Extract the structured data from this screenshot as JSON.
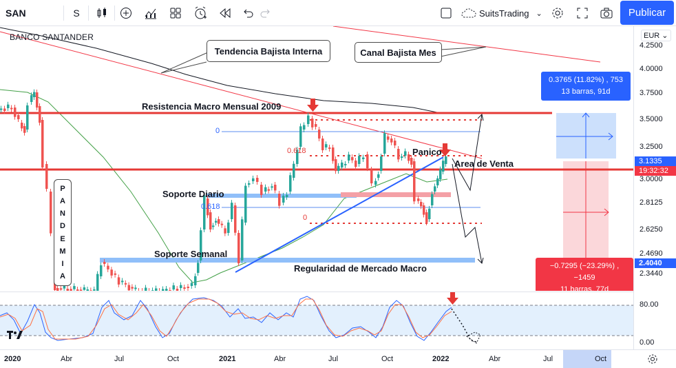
{
  "toolbar": {
    "symbol": "SAN",
    "interval": "S",
    "layout_name": "SuitsTrading",
    "publish_label": "Publicar",
    "icons": [
      "candles-icon",
      "add-indicator-icon",
      "indicators-icon",
      "templates-icon",
      "alert-icon",
      "replay-icon",
      "undo-icon",
      "redo-icon",
      "fullscreen-checkbox-icon",
      "cloud-icon",
      "chevron-down-icon",
      "gear-icon",
      "fullscreen-icon",
      "camera-icon"
    ]
  },
  "chart": {
    "symbol_name": "BANCO SANTANDER",
    "annotations": {
      "tendencia": "Tendencia Bajista Interna",
      "canal": "Canal Bajista Mes",
      "resistencia": "Resistencia Macro Mensual 2009",
      "panico": "Panico",
      "area_venta": "Area de Venta",
      "soporte_diario": "Soporte Diario",
      "soporte_semanal": "Soporte Semanal",
      "regularidad": "Regularidad de Mercado Macro",
      "pandemia": [
        "P",
        "A",
        "N",
        "D",
        "E",
        "M",
        "I",
        "A"
      ]
    },
    "fib_labels": {
      "zero_top": "0",
      "fib618_top": "0.618",
      "fib618_bottom": "0.618",
      "zero_bottom": "0"
    },
    "measure_up": {
      "line1": "0.3765 (11.82%) , 753",
      "line2": "13 barras, 91d"
    },
    "measure_down": {
      "line1": "−0.7295 (−23.29%) , −1459",
      "line2": "11 barras, 77d"
    }
  },
  "price_axis": {
    "currency": "EUR",
    "labels": [
      "4.2500",
      "4.0000",
      "3.7500",
      "3.5000",
      "3.2500",
      "3.0000",
      "2.8125",
      "2.6250",
      "2.4690",
      "2.3440"
    ],
    "current_price": "3.1335",
    "countdown": "19:32:32",
    "level_tag": "2.4040"
  },
  "oscillator": {
    "labels": [
      "80.00",
      "0.00"
    ]
  },
  "time_axis": {
    "labels": [
      "2020",
      "Abr",
      "Jul",
      "Oct",
      "2021",
      "Abr",
      "Jul",
      "Oct",
      "2022",
      "Abr",
      "Jul",
      "Oct"
    ],
    "bold": [
      true,
      false,
      false,
      false,
      true,
      false,
      false,
      false,
      true,
      false,
      false,
      false
    ]
  },
  "colors": {
    "accent": "#2962ff",
    "bear": "#ef5350",
    "bull": "#26a69a",
    "resistance": "#e53935",
    "support_band": "#90bff9"
  }
}
